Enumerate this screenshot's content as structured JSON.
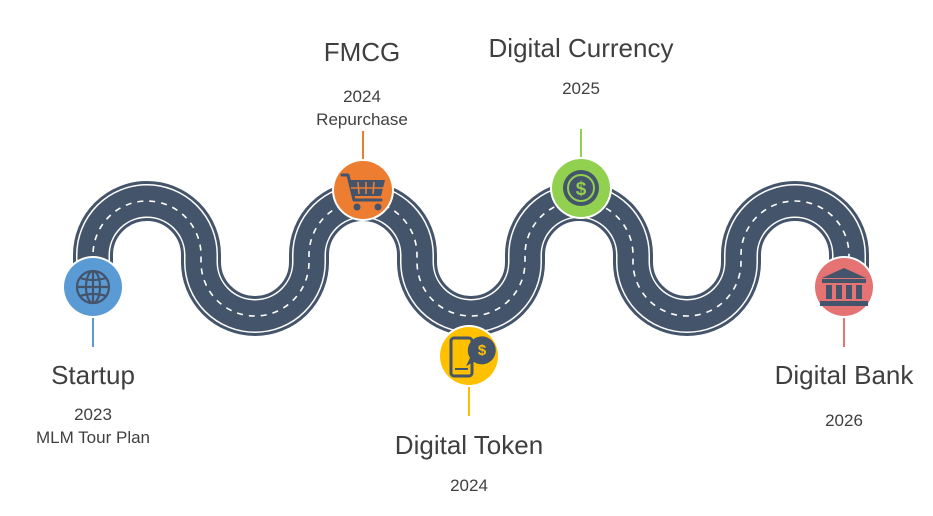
{
  "milestones": [
    {
      "id": "startup",
      "title": "Startup",
      "year": "2023",
      "note": "MLM Tour Plan",
      "color": "#5a9bd5",
      "icon": "globe-icon",
      "label_position": "below"
    },
    {
      "id": "fmcg",
      "title": "FMCG",
      "year": "2024",
      "note": "Repurchase",
      "color": "#ed7d31",
      "icon": "shopping-cart-icon",
      "label_position": "above"
    },
    {
      "id": "digital-token",
      "title": "Digital Token",
      "year": "2024",
      "note": "",
      "color": "#ffc000",
      "icon": "mobile-payment-icon",
      "label_position": "below"
    },
    {
      "id": "digital-currency",
      "title": "Digital Currency",
      "year": "2025",
      "note": "",
      "color": "#92d050",
      "icon": "dollar-coin-icon",
      "label_position": "above"
    },
    {
      "id": "digital-bank",
      "title": "Digital Bank",
      "year": "2026",
      "note": "",
      "color": "#e57373",
      "icon": "bank-icon",
      "label_position": "below"
    }
  ],
  "road": {
    "color": "#44546a",
    "edge_color": "#ffffff",
    "lane_marking_color": "#ffffff"
  },
  "icon_glyph_color": "#44546a"
}
